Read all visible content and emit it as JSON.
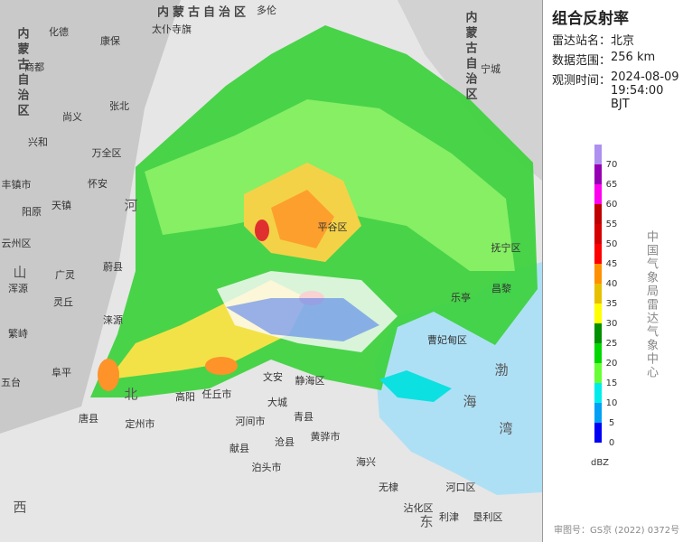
{
  "panel": {
    "title": "组合反射率",
    "info": [
      {
        "label": "雷达站名：",
        "value": "北京"
      },
      {
        "label": "数据范围：",
        "value": "256 km"
      },
      {
        "label": "观测时间：",
        "value": "2024-08-09 19:54:00 BJT"
      }
    ],
    "legend": {
      "unit": "dBZ",
      "lim": [
        0,
        75
      ],
      "levels": [
        {
          "value": 0,
          "color": "#0000f6"
        },
        {
          "value": 5,
          "color": "#01a0f6"
        },
        {
          "value": 10,
          "color": "#00ecec"
        },
        {
          "value": 15,
          "color": "#66ff33"
        },
        {
          "value": 20,
          "color": "#00d800"
        },
        {
          "value": 25,
          "color": "#019000"
        },
        {
          "value": 30,
          "color": "#ffff00"
        },
        {
          "value": 35,
          "color": "#e7c000"
        },
        {
          "value": 40,
          "color": "#ff9000"
        },
        {
          "value": 45,
          "color": "#ff0000"
        },
        {
          "value": 50,
          "color": "#d60000"
        },
        {
          "value": 55,
          "color": "#c00000"
        },
        {
          "value": 60,
          "color": "#ff00f0"
        },
        {
          "value": 65,
          "color": "#9600b4"
        },
        {
          "value": 70,
          "color": "#ad90f0"
        }
      ]
    },
    "credit": "中国气象局雷达气象中心",
    "footer": "审图号：GS京 (2022) 0372号"
  },
  "map": {
    "places": [
      "内蒙古自治区",
      "内蒙古自治区",
      "内蒙古自治区",
      "多伦",
      "化德",
      "康保",
      "太仆寺旗",
      "商都",
      "张北",
      "尚义",
      "兴和",
      "万全区",
      "怀安",
      "丰镇市",
      "天镇",
      "阳原",
      "云州区",
      "广灵",
      "蔚县",
      "浑源",
      "灵丘",
      "涞源",
      "繁峙",
      "阜平",
      "五台",
      "唐县",
      "定州市",
      "高阳",
      "任丘市",
      "文安",
      "大城",
      "静海区",
      "青县",
      "河间市",
      "献县",
      "沧县",
      "黄骅市",
      "泊头市",
      "海兴",
      "无棣",
      "沾化区",
      "河口区",
      "利津",
      "垦利区",
      "宁城",
      "平谷区",
      "曹妃甸区",
      "乐亭",
      "昌黎",
      "抚宁区",
      "渤",
      "海",
      "湾",
      "河",
      "北",
      "山",
      "西",
      "东"
    ]
  }
}
